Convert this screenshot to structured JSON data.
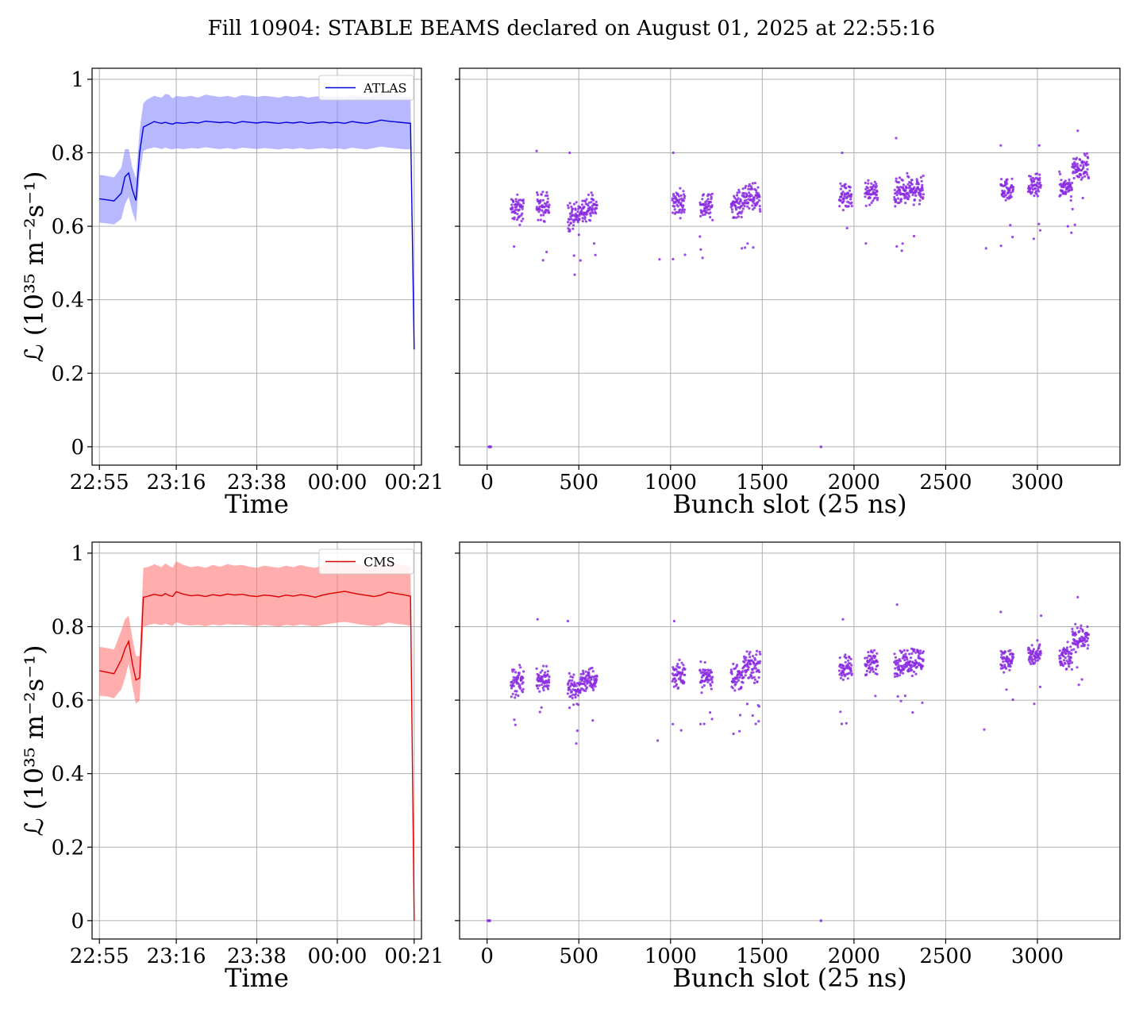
{
  "suptitle": "Fill 10904: STABLE BEAMS declared on August 01, 2025 at 22:55:16",
  "colors": {
    "atlas": "#0000dd",
    "atlas_band": "#8888ff",
    "cms": "#dd0000",
    "cms_band": "#ff7777",
    "bunch_points": "#8a2be2",
    "grid": "#b0b0b0"
  },
  "chart_data": [
    {
      "type": "line",
      "name": "atlas-time-series",
      "xlabel": "Time",
      "ylabel": "ℒ (10³⁵ m⁻²s⁻¹)",
      "xlim_minutes": [
        -2,
        88
      ],
      "ylim": [
        -0.05,
        1.03
      ],
      "xtick_labels": [
        "22:55",
        "23:16",
        "23:38",
        "00:00",
        "00:21"
      ],
      "xtick_minutes": [
        0,
        21,
        43,
        65,
        86
      ],
      "yticks": [
        0.0,
        0.2,
        0.4,
        0.6,
        0.8,
        1.0
      ],
      "legend": "top-right",
      "grid": true,
      "series": [
        {
          "name": "ATLAS",
          "x_minutes": [
            0,
            2,
            4,
            6,
            7,
            8,
            9,
            10,
            11,
            12,
            13,
            14,
            15,
            16,
            17,
            18,
            19,
            20,
            21,
            23,
            25,
            27,
            29,
            31,
            33,
            35,
            37,
            39,
            41,
            43,
            45,
            47,
            49,
            51,
            53,
            55,
            57,
            59,
            61,
            63,
            65,
            67,
            69,
            71,
            73,
            75,
            77,
            79,
            81,
            83,
            85,
            86
          ],
          "values": [
            0.675,
            0.672,
            0.669,
            0.69,
            0.735,
            0.745,
            0.7,
            0.67,
            0.8,
            0.87,
            0.875,
            0.88,
            0.885,
            0.882,
            0.88,
            0.883,
            0.88,
            0.878,
            0.882,
            0.88,
            0.883,
            0.881,
            0.886,
            0.884,
            0.882,
            0.884,
            0.88,
            0.885,
            0.883,
            0.881,
            0.884,
            0.882,
            0.88,
            0.883,
            0.881,
            0.884,
            0.88,
            0.882,
            0.884,
            0.881,
            0.883,
            0.88,
            0.885,
            0.882,
            0.88,
            0.884,
            0.889,
            0.886,
            0.884,
            0.882,
            0.88,
            0.265
          ],
          "lower": [
            0.61,
            0.608,
            0.605,
            0.62,
            0.66,
            0.68,
            0.64,
            0.61,
            0.74,
            0.805,
            0.81,
            0.812,
            0.815,
            0.813,
            0.81,
            0.814,
            0.811,
            0.809,
            0.812,
            0.81,
            0.813,
            0.811,
            0.815,
            0.812,
            0.81,
            0.813,
            0.809,
            0.814,
            0.812,
            0.81,
            0.813,
            0.811,
            0.809,
            0.812,
            0.81,
            0.813,
            0.809,
            0.811,
            0.813,
            0.81,
            0.812,
            0.809,
            0.814,
            0.811,
            0.809,
            0.813,
            0.817,
            0.814,
            0.812,
            0.81,
            0.809,
            0.265
          ],
          "upper": [
            0.74,
            0.737,
            0.733,
            0.76,
            0.81,
            0.81,
            0.76,
            0.73,
            0.86,
            0.935,
            0.945,
            0.95,
            0.955,
            0.952,
            0.95,
            0.96,
            0.958,
            0.948,
            0.955,
            0.952,
            0.955,
            0.95,
            0.958,
            0.955,
            0.952,
            0.955,
            0.95,
            0.957,
            0.955,
            0.952,
            0.955,
            0.953,
            0.95,
            0.955,
            0.952,
            0.955,
            0.95,
            0.953,
            0.955,
            0.952,
            0.955,
            0.95,
            0.957,
            0.954,
            0.95,
            0.956,
            0.962,
            0.958,
            0.956,
            0.953,
            0.952,
            0.265
          ]
        }
      ]
    },
    {
      "type": "scatter",
      "name": "atlas-bunch-slots",
      "xlabel": "Bunch slot (25 ns)",
      "xlim": [
        -150,
        3450
      ],
      "ylim": [
        -0.05,
        1.03
      ],
      "xticks": [
        0,
        500,
        1000,
        1500,
        2000,
        2500,
        3000
      ],
      "yticks": [
        0.0,
        0.2,
        0.4,
        0.6,
        0.8,
        1.0
      ],
      "grid": true,
      "series": [
        {
          "zero_points": [
            [
              10,
              0.0
            ],
            [
              15,
              0.0
            ],
            [
              20,
              0.0
            ],
            [
              1820,
              0.0
            ]
          ],
          "outliers": [
            [
              270,
              0.805
            ],
            [
              450,
              0.8
            ],
            [
              1015,
              0.8
            ],
            [
              2230,
              0.84
            ],
            [
              3220,
              0.86
            ],
            [
              940,
              0.51
            ],
            [
              2720,
              0.54
            ],
            [
              3010,
              0.82
            ],
            [
              1935,
              0.8
            ],
            [
              2800,
              0.82
            ]
          ],
          "trains": [
            {
              "x_start": 130,
              "x_end": 200,
              "center": 0.645,
              "spread": 0.055
            },
            {
              "x_start": 270,
              "x_end": 340,
              "center": 0.655,
              "spread": 0.055
            },
            {
              "x_start": 440,
              "x_end": 510,
              "center": 0.625,
              "spread": 0.06
            },
            {
              "x_start": 510,
              "x_end": 600,
              "center": 0.65,
              "spread": 0.05
            },
            {
              "x_start": 1010,
              "x_end": 1080,
              "center": 0.665,
              "spread": 0.05
            },
            {
              "x_start": 1160,
              "x_end": 1230,
              "center": 0.655,
              "spread": 0.05
            },
            {
              "x_start": 1330,
              "x_end": 1400,
              "center": 0.66,
              "spread": 0.05
            },
            {
              "x_start": 1400,
              "x_end": 1490,
              "center": 0.68,
              "spread": 0.055
            },
            {
              "x_start": 1920,
              "x_end": 1990,
              "center": 0.68,
              "spread": 0.05
            },
            {
              "x_start": 2060,
              "x_end": 2130,
              "center": 0.69,
              "spread": 0.05
            },
            {
              "x_start": 2220,
              "x_end": 2290,
              "center": 0.69,
              "spread": 0.055
            },
            {
              "x_start": 2290,
              "x_end": 2380,
              "center": 0.7,
              "spread": 0.055
            },
            {
              "x_start": 2800,
              "x_end": 2870,
              "center": 0.7,
              "spread": 0.045
            },
            {
              "x_start": 2950,
              "x_end": 3020,
              "center": 0.71,
              "spread": 0.045
            },
            {
              "x_start": 3120,
              "x_end": 3190,
              "center": 0.705,
              "spread": 0.05
            },
            {
              "x_start": 3190,
              "x_end": 3280,
              "center": 0.76,
              "spread": 0.05
            }
          ]
        }
      ]
    },
    {
      "type": "line",
      "name": "cms-time-series",
      "xlabel": "Time",
      "ylabel": "ℒ (10³⁵ m⁻²s⁻¹)",
      "xlim_minutes": [
        -2,
        88
      ],
      "ylim": [
        -0.05,
        1.03
      ],
      "xtick_labels": [
        "22:55",
        "23:16",
        "23:38",
        "00:00",
        "00:21"
      ],
      "xtick_minutes": [
        0,
        21,
        43,
        65,
        86
      ],
      "yticks": [
        0.0,
        0.2,
        0.4,
        0.6,
        0.8,
        1.0
      ],
      "legend": "top-right",
      "grid": true,
      "series": [
        {
          "name": "CMS",
          "x_minutes": [
            0,
            2,
            4,
            6,
            7,
            8,
            9,
            10,
            11,
            12,
            13,
            14,
            15,
            16,
            17,
            18,
            19,
            20,
            21,
            23,
            25,
            27,
            29,
            31,
            33,
            35,
            37,
            39,
            41,
            43,
            45,
            47,
            49,
            51,
            53,
            55,
            57,
            59,
            61,
            63,
            65,
            67,
            69,
            71,
            73,
            75,
            77,
            79,
            81,
            83,
            85,
            86
          ],
          "values": [
            0.68,
            0.676,
            0.672,
            0.71,
            0.74,
            0.76,
            0.7,
            0.655,
            0.66,
            0.88,
            0.882,
            0.885,
            0.888,
            0.886,
            0.884,
            0.89,
            0.885,
            0.882,
            0.895,
            0.888,
            0.884,
            0.886,
            0.882,
            0.887,
            0.884,
            0.889,
            0.886,
            0.888,
            0.884,
            0.882,
            0.886,
            0.884,
            0.881,
            0.886,
            0.883,
            0.887,
            0.884,
            0.88,
            0.886,
            0.89,
            0.893,
            0.896,
            0.892,
            0.888,
            0.885,
            0.882,
            0.886,
            0.894,
            0.89,
            0.887,
            0.883,
            0.0
          ],
          "lower": [
            0.612,
            0.61,
            0.605,
            0.63,
            0.66,
            0.7,
            0.64,
            0.59,
            0.6,
            0.8,
            0.803,
            0.806,
            0.808,
            0.806,
            0.804,
            0.808,
            0.805,
            0.802,
            0.812,
            0.806,
            0.803,
            0.805,
            0.801,
            0.806,
            0.803,
            0.807,
            0.805,
            0.806,
            0.803,
            0.801,
            0.805,
            0.803,
            0.8,
            0.805,
            0.802,
            0.806,
            0.803,
            0.8,
            0.805,
            0.808,
            0.811,
            0.813,
            0.81,
            0.806,
            0.804,
            0.801,
            0.805,
            0.811,
            0.808,
            0.806,
            0.802,
            0.0
          ],
          "upper": [
            0.745,
            0.742,
            0.738,
            0.79,
            0.82,
            0.83,
            0.77,
            0.72,
            0.72,
            0.96,
            0.962,
            0.965,
            0.97,
            0.966,
            0.962,
            0.972,
            0.966,
            0.96,
            0.978,
            0.968,
            0.962,
            0.965,
            0.96,
            0.968,
            0.963,
            0.97,
            0.966,
            0.968,
            0.963,
            0.96,
            0.966,
            0.963,
            0.96,
            0.966,
            0.962,
            0.968,
            0.963,
            0.96,
            0.967,
            0.972,
            0.975,
            0.978,
            0.974,
            0.969,
            0.965,
            0.962,
            0.967,
            0.976,
            0.972,
            0.968,
            0.964,
            0.0
          ]
        }
      ]
    },
    {
      "type": "scatter",
      "name": "cms-bunch-slots",
      "xlabel": "Bunch slot (25 ns)",
      "xlim": [
        -150,
        3450
      ],
      "ylim": [
        -0.05,
        1.03
      ],
      "xticks": [
        0,
        500,
        1000,
        1500,
        2000,
        2500,
        3000
      ],
      "yticks": [
        0.0,
        0.2,
        0.4,
        0.6,
        0.8,
        1.0
      ],
      "grid": true,
      "series": [
        {
          "zero_points": [
            [
              5,
              0.0
            ],
            [
              10,
              0.0
            ],
            [
              15,
              0.0
            ],
            [
              1820,
              0.0
            ]
          ],
          "outliers": [
            [
              275,
              0.82
            ],
            [
              440,
              0.815
            ],
            [
              1020,
              0.815
            ],
            [
              2235,
              0.86
            ],
            [
              3220,
              0.88
            ],
            [
              930,
              0.49
            ],
            [
              2710,
              0.52
            ],
            [
              3020,
              0.83
            ],
            [
              1940,
              0.82
            ],
            [
              2800,
              0.84
            ]
          ],
          "trains": [
            {
              "x_start": 130,
              "x_end": 200,
              "center": 0.65,
              "spread": 0.055
            },
            {
              "x_start": 270,
              "x_end": 340,
              "center": 0.66,
              "spread": 0.055
            },
            {
              "x_start": 440,
              "x_end": 510,
              "center": 0.63,
              "spread": 0.06
            },
            {
              "x_start": 510,
              "x_end": 600,
              "center": 0.655,
              "spread": 0.05
            },
            {
              "x_start": 1010,
              "x_end": 1080,
              "center": 0.67,
              "spread": 0.05
            },
            {
              "x_start": 1160,
              "x_end": 1230,
              "center": 0.665,
              "spread": 0.05
            },
            {
              "x_start": 1330,
              "x_end": 1400,
              "center": 0.665,
              "spread": 0.05
            },
            {
              "x_start": 1400,
              "x_end": 1490,
              "center": 0.69,
              "spread": 0.055
            },
            {
              "x_start": 1920,
              "x_end": 1990,
              "center": 0.69,
              "spread": 0.05
            },
            {
              "x_start": 2060,
              "x_end": 2130,
              "center": 0.7,
              "spread": 0.05
            },
            {
              "x_start": 2220,
              "x_end": 2290,
              "center": 0.7,
              "spread": 0.055
            },
            {
              "x_start": 2290,
              "x_end": 2380,
              "center": 0.71,
              "spread": 0.055
            },
            {
              "x_start": 2800,
              "x_end": 2870,
              "center": 0.71,
              "spread": 0.045
            },
            {
              "x_start": 2950,
              "x_end": 3020,
              "center": 0.72,
              "spread": 0.045
            },
            {
              "x_start": 3120,
              "x_end": 3190,
              "center": 0.715,
              "spread": 0.05
            },
            {
              "x_start": 3190,
              "x_end": 3280,
              "center": 0.77,
              "spread": 0.05
            }
          ]
        }
      ]
    }
  ]
}
